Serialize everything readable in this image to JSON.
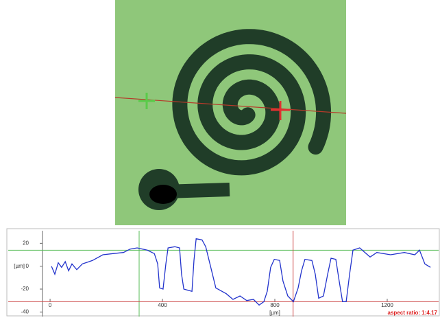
{
  "chart_data": {
    "type": "line",
    "x": [
      5,
      17,
      29,
      41,
      54,
      66,
      78,
      95,
      115,
      151,
      188,
      224,
      261,
      285,
      310,
      346,
      371,
      383,
      390,
      402,
      412,
      420,
      444,
      461,
      468,
      476,
      505,
      512,
      520,
      541,
      554,
      566,
      590,
      627,
      651,
      676,
      700,
      724,
      744,
      761,
      773,
      785,
      798,
      817,
      829,
      846,
      866,
      883,
      895,
      907,
      932,
      944,
      956,
      973,
      988,
      1000,
      1017,
      1029,
      1041,
      1054,
      1066,
      1078,
      1102,
      1139,
      1163,
      1212,
      1261,
      1298,
      1315,
      1334,
      1354
    ],
    "values": [
      0,
      -7,
      3,
      -1,
      4,
      -4,
      2,
      -3,
      2,
      5,
      10,
      11,
      12,
      15,
      16,
      14,
      11,
      2,
      -19,
      -20,
      2,
      16,
      17,
      16,
      -7,
      -20,
      -22,
      5,
      24,
      23,
      17,
      5,
      -19,
      -24,
      -29,
      -26,
      -30,
      -29,
      -34,
      -31,
      -22,
      -1,
      6,
      5,
      -13,
      -26,
      -31,
      -19,
      -4,
      6,
      5,
      -7,
      -28,
      -26,
      -7,
      7,
      6,
      -13,
      -31,
      -31,
      -7,
      14,
      16,
      8,
      12,
      10,
      12,
      10,
      14,
      2,
      -1
    ],
    "color": "#2233cc",
    "xlim": [
      -27,
      1383
    ],
    "ylim": [
      -44,
      31
    ],
    "xticks": [
      0,
      400,
      800,
      1200
    ],
    "yticks": [
      -40,
      -20,
      0,
      20
    ],
    "x_label": "[µm]",
    "y_label": "[µm]",
    "annotation": "aspect ratio: 1:4.17",
    "cursors": [
      {
        "x": 317,
        "y": 14,
        "color": "#55bb55"
      },
      {
        "x": 865,
        "y": -31,
        "color": "#cc4444"
      }
    ]
  }
}
